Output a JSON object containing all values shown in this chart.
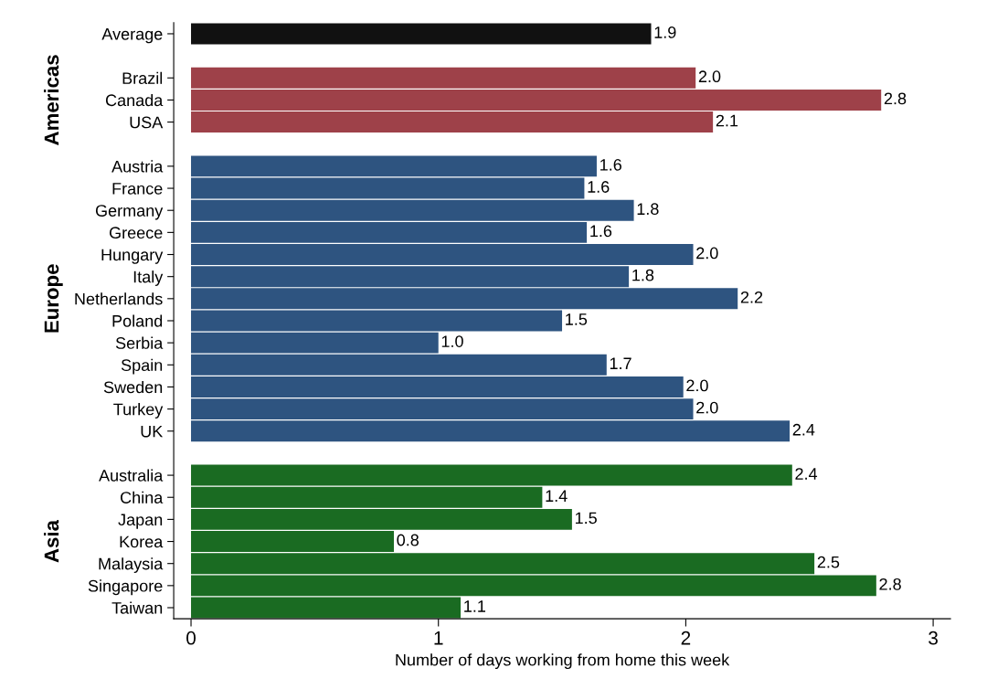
{
  "chart_data": {
    "type": "bar",
    "orientation": "horizontal",
    "xlabel": "Number of days working from home this week",
    "categories": [
      "Average",
      null,
      "Brazil",
      "Canada",
      "USA",
      null,
      "Austria",
      "France",
      "Germany",
      "Greece",
      "Hungary",
      "Italy",
      "Netherlands",
      "Poland",
      "Serbia",
      "Spain",
      "Sweden",
      "Turkey",
      "UK",
      null,
      "Australia",
      "China",
      "Japan",
      "Korea",
      "Malaysia",
      "Singapore",
      "Taiwan"
    ],
    "values": [
      1.86,
      null,
      2.04,
      2.79,
      2.11,
      null,
      1.64,
      1.59,
      1.79,
      1.6,
      2.03,
      1.77,
      2.21,
      1.5,
      1.0,
      1.68,
      1.99,
      2.03,
      2.42,
      null,
      2.43,
      1.42,
      1.54,
      0.82,
      2.52,
      2.77,
      1.09
    ],
    "value_labels": [
      "1.9",
      null,
      "2.0",
      "2.8",
      "2.1",
      null,
      "1.6",
      "1.6",
      "1.8",
      "1.6",
      "2.0",
      "1.8",
      "2.2",
      "1.5",
      "1.0",
      "1.7",
      "2.0",
      "2.0",
      "2.4",
      null,
      "2.4",
      "1.4",
      "1.5",
      "0.8",
      "2.5",
      "2.8",
      "1.1"
    ],
    "colors": [
      "#111111",
      null,
      "#9e4149",
      "#9e4149",
      "#9e4149",
      null,
      "#2e5480",
      "#2e5480",
      "#2e5480",
      "#2e5480",
      "#2e5480",
      "#2e5480",
      "#2e5480",
      "#2e5480",
      "#2e5480",
      "#2e5480",
      "#2e5480",
      "#2e5480",
      "#2e5480",
      null,
      "#1a6b22",
      "#1a6b22",
      "#1a6b22",
      "#1a6b22",
      "#1a6b22",
      "#1a6b22",
      "#1a6b22"
    ],
    "xlim": [
      -0.07,
      3.07
    ],
    "xticks": [
      0,
      1,
      2,
      3
    ],
    "grid": false,
    "legend": false,
    "annotations": [
      "Americas",
      "Europe",
      "Asia"
    ]
  }
}
